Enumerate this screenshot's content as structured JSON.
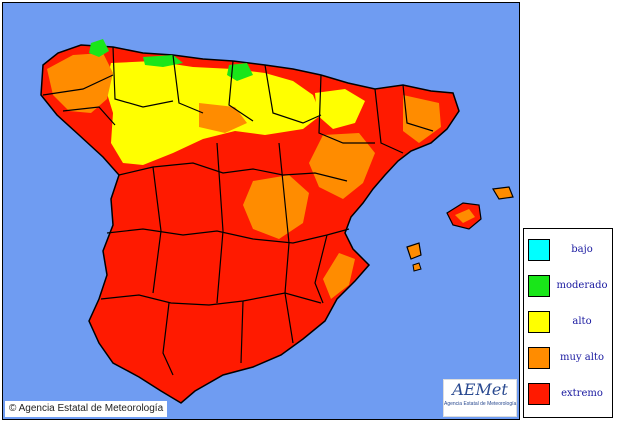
{
  "map": {
    "background_color": "#6f9cf2",
    "border_color": "#000000",
    "region_colors": {
      "extremo": "#ff1a00",
      "muy_alto": "#ff8c00",
      "alto": "#ffff00",
      "moderado": "#19e619",
      "bajo": "#00ffff"
    }
  },
  "copyright": "© Agencia Estatal de Meteorología",
  "logo": {
    "mark": "AEMet",
    "subtitle": "Agencia Estatal de Meteorología"
  },
  "legend": {
    "items": [
      {
        "label": "bajo",
        "color": "#00ffff"
      },
      {
        "label": "moderado",
        "color": "#19e619"
      },
      {
        "label": "alto",
        "color": "#ffff00"
      },
      {
        "label": "muy alto",
        "color": "#ff8c00"
      },
      {
        "label": "extremo",
        "color": "#ff1a00"
      }
    ]
  }
}
